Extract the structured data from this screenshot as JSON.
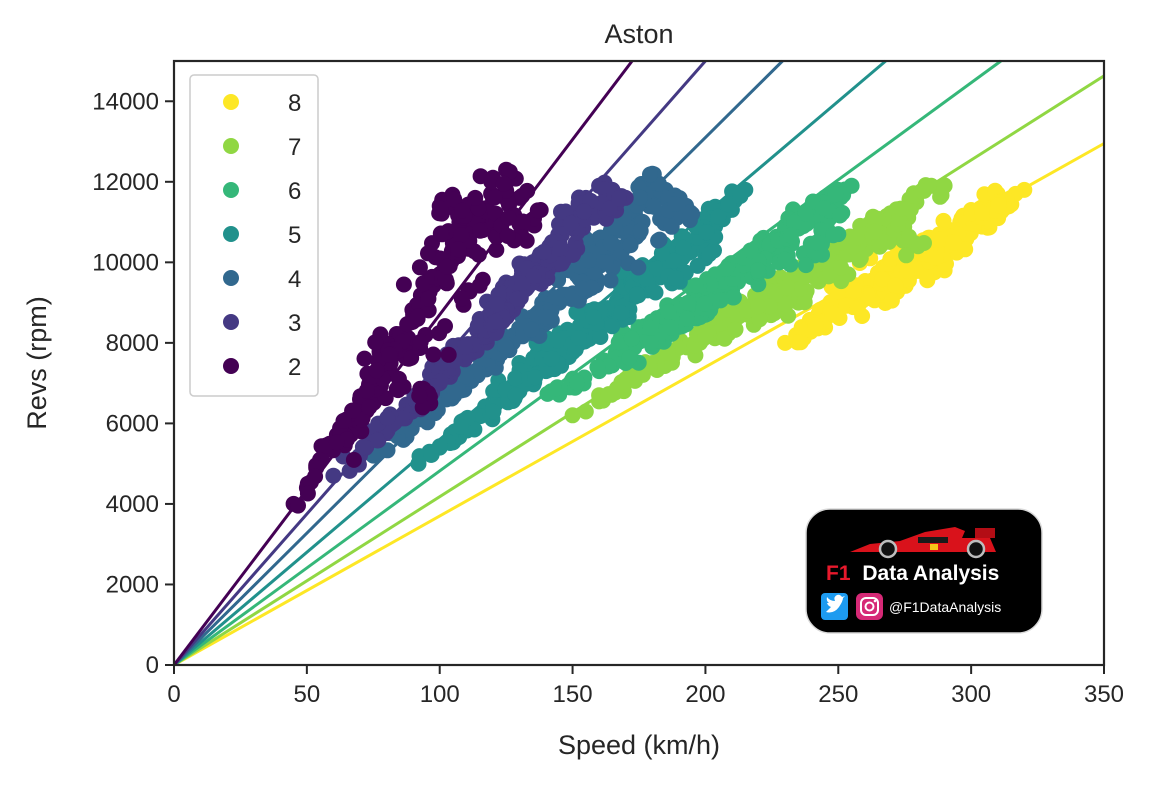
{
  "chart_data": {
    "type": "scatter",
    "title": "Aston",
    "xlabel": "Speed (km/h)",
    "ylabel": "Revs (rpm)",
    "xlim": [
      0,
      350
    ],
    "ylim": [
      0,
      15000
    ],
    "xticks": [
      "0",
      "50",
      "100",
      "150",
      "200",
      "250",
      "300",
      "350"
    ],
    "yticks": [
      "0",
      "2000",
      "4000",
      "6000",
      "8000",
      "10000",
      "12000",
      "14000"
    ],
    "legend_position": "upper-left",
    "grid": false,
    "colors": {
      "8": "#fde725",
      "7": "#90d743",
      "6": "#35b779",
      "5": "#21918c",
      "4": "#31688e",
      "3": "#443983",
      "2": "#440154"
    },
    "series": [
      {
        "name": "8",
        "color": "#fde725",
        "fit_slope_rpm_per_kmh": 37.0,
        "speed_range": [
          228,
          320
        ],
        "rpm_range": [
          7900,
          11800
        ],
        "points": [
          [
            230,
            8000
          ],
          [
            235,
            8100
          ],
          [
            240,
            8500
          ],
          [
            245,
            8600
          ],
          [
            250,
            8800
          ],
          [
            255,
            9000
          ],
          [
            260,
            9100
          ],
          [
            265,
            9300
          ],
          [
            270,
            9500
          ],
          [
            275,
            9600
          ],
          [
            280,
            9900
          ],
          [
            285,
            10100
          ],
          [
            290,
            10400
          ],
          [
            295,
            10700
          ],
          [
            300,
            10900
          ],
          [
            305,
            11100
          ],
          [
            310,
            11300
          ],
          [
            315,
            11600
          ],
          [
            320,
            11800
          ],
          [
            262,
            10100
          ],
          [
            275,
            10300
          ],
          [
            285,
            10600
          ],
          [
            300,
            11300
          ],
          [
            310,
            11700
          ],
          [
            250,
            9300
          ],
          [
            270,
            9100
          ],
          [
            290,
            9800
          ]
        ]
      },
      {
        "name": "7",
        "color": "#90d743",
        "fit_slope_rpm_per_kmh": 41.8,
        "speed_range": [
          148,
          290
        ],
        "rpm_range": [
          6100,
          12000
        ],
        "points": [
          [
            150,
            6200
          ],
          [
            160,
            6700
          ],
          [
            170,
            7100
          ],
          [
            180,
            7500
          ],
          [
            190,
            7900
          ],
          [
            200,
            8300
          ],
          [
            210,
            8500
          ],
          [
            220,
            8900
          ],
          [
            230,
            9200
          ],
          [
            240,
            9700
          ],
          [
            250,
            10000
          ],
          [
            260,
            10400
          ],
          [
            265,
            10900
          ],
          [
            270,
            11000
          ],
          [
            275,
            11300
          ],
          [
            280,
            11700
          ],
          [
            285,
            11900
          ],
          [
            290,
            11900
          ],
          [
            200,
            8500
          ],
          [
            225,
            9500
          ],
          [
            245,
            10100
          ],
          [
            255,
            10400
          ],
          [
            270,
            10600
          ],
          [
            280,
            10400
          ],
          [
            220,
            8600
          ],
          [
            235,
            9000
          ]
        ]
      },
      {
        "name": "6",
        "color": "#35b779",
        "fit_slope_rpm_per_kmh": 48.2,
        "speed_range": [
          140,
          255
        ],
        "rpm_range": [
          6100,
          11900
        ],
        "points": [
          [
            142,
            6800
          ],
          [
            150,
            6900
          ],
          [
            160,
            7300
          ],
          [
            170,
            7500
          ],
          [
            180,
            7900
          ],
          [
            190,
            8400
          ],
          [
            200,
            8700
          ],
          [
            210,
            9300
          ],
          [
            220,
            9900
          ],
          [
            225,
            10400
          ],
          [
            230,
            10900
          ],
          [
            235,
            11000
          ],
          [
            240,
            11400
          ],
          [
            245,
            11500
          ],
          [
            250,
            11800
          ],
          [
            255,
            11900
          ],
          [
            205,
            9600
          ],
          [
            215,
            10100
          ],
          [
            230,
            10500
          ],
          [
            240,
            10300
          ],
          [
            250,
            10700
          ],
          [
            170,
            8200
          ],
          [
            185,
            8600
          ]
        ]
      },
      {
        "name": "5",
        "color": "#21918c",
        "fit_slope_rpm_per_kmh": 56.0,
        "speed_range": [
          92,
          215
        ],
        "rpm_range": [
          5000,
          11800
        ],
        "points": [
          [
            92,
            5000
          ],
          [
            100,
            5400
          ],
          [
            110,
            5900
          ],
          [
            120,
            6300
          ],
          [
            130,
            6800
          ],
          [
            140,
            7300
          ],
          [
            150,
            7800
          ],
          [
            160,
            8300
          ],
          [
            170,
            8800
          ],
          [
            180,
            9300
          ],
          [
            190,
            9900
          ],
          [
            195,
            10500
          ],
          [
            200,
            10900
          ],
          [
            205,
            11300
          ],
          [
            210,
            11500
          ],
          [
            215,
            11800
          ],
          [
            155,
            8600
          ],
          [
            170,
            9600
          ],
          [
            185,
            10400
          ],
          [
            200,
            10100
          ],
          [
            130,
            7500
          ],
          [
            145,
            8100
          ]
        ]
      },
      {
        "name": "4",
        "color": "#31688e",
        "fit_slope_rpm_per_kmh": 65.5,
        "speed_range": [
          75,
          195
        ],
        "rpm_range": [
          5100,
          12200
        ],
        "points": [
          [
            75,
            5200
          ],
          [
            85,
            5700
          ],
          [
            95,
            6200
          ],
          [
            105,
            6800
          ],
          [
            115,
            7300
          ],
          [
            125,
            7900
          ],
          [
            135,
            8400
          ],
          [
            145,
            9000
          ],
          [
            155,
            9600
          ],
          [
            165,
            10300
          ],
          [
            170,
            11000
          ],
          [
            175,
            11600
          ],
          [
            180,
            12200
          ],
          [
            185,
            11800
          ],
          [
            190,
            11500
          ],
          [
            195,
            11200
          ],
          [
            160,
            10600
          ],
          [
            175,
            10700
          ],
          [
            120,
            7700
          ],
          [
            140,
            8600
          ],
          [
            150,
            9800
          ]
        ]
      },
      {
        "name": "3",
        "color": "#443983",
        "fit_slope_rpm_per_kmh": 75.0,
        "speed_range": [
          60,
          170
        ],
        "rpm_range": [
          4600,
          12000
        ],
        "points": [
          [
            60,
            4700
          ],
          [
            70,
            5200
          ],
          [
            80,
            5800
          ],
          [
            90,
            6400
          ],
          [
            100,
            7000
          ],
          [
            110,
            7700
          ],
          [
            120,
            8400
          ],
          [
            130,
            9100
          ],
          [
            140,
            9800
          ],
          [
            145,
            10500
          ],
          [
            150,
            11000
          ],
          [
            155,
            11600
          ],
          [
            160,
            11900
          ],
          [
            165,
            11800
          ],
          [
            170,
            11600
          ],
          [
            135,
            10000
          ],
          [
            150,
            10300
          ],
          [
            95,
            6800
          ],
          [
            115,
            8000
          ],
          [
            125,
            9500
          ]
        ]
      },
      {
        "name": "2",
        "color": "#440154",
        "fit_slope_rpm_per_kmh": 87.0,
        "speed_range": [
          45,
          138
        ],
        "rpm_range": [
          3900,
          12300
        ],
        "points": [
          [
            45,
            4000
          ],
          [
            50,
            4400
          ],
          [
            55,
            5100
          ],
          [
            60,
            5500
          ],
          [
            65,
            6100
          ],
          [
            70,
            6600
          ],
          [
            75,
            7200
          ],
          [
            80,
            7700
          ],
          [
            85,
            8200
          ],
          [
            90,
            8700
          ],
          [
            95,
            9200
          ],
          [
            100,
            9700
          ],
          [
            105,
            10200
          ],
          [
            110,
            10600
          ],
          [
            115,
            11100
          ],
          [
            120,
            11600
          ],
          [
            125,
            12300
          ],
          [
            130,
            11600
          ],
          [
            135,
            11000
          ],
          [
            138,
            11300
          ],
          [
            100,
            11400
          ],
          [
            110,
            11200
          ],
          [
            95,
            6500
          ],
          [
            85,
            6900
          ],
          [
            70,
            6100
          ],
          [
            120,
            12100
          ]
        ]
      }
    ]
  },
  "logo": {
    "prefix": "F1",
    "title": "Data Analysis",
    "handle": "@F1DataAnalysis",
    "icons": [
      "twitter-icon",
      "instagram-icon"
    ]
  }
}
